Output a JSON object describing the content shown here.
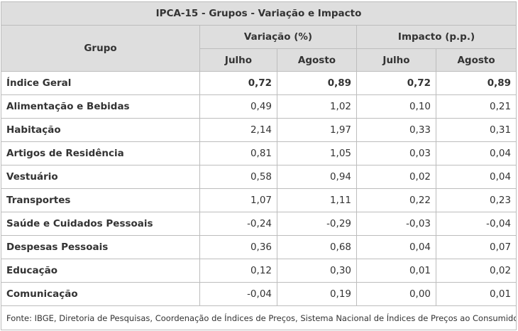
{
  "table": {
    "title": "IPCA-15 - Grupos - Variação e Impacto",
    "group_header": "Grupo",
    "variation_header": "Variação (%)",
    "impact_header": "Impacto (p.p.)",
    "month_labels": [
      "Julho",
      "Agosto",
      "Julho",
      "Agosto"
    ],
    "rows": [
      {
        "name": "Índice Geral",
        "values": [
          "0,72",
          "0,89",
          "0,72",
          "0,89"
        ]
      },
      {
        "name": "Alimentação e Bebidas",
        "values": [
          "0,49",
          "1,02",
          "0,10",
          "0,21"
        ]
      },
      {
        "name": "Habitação",
        "values": [
          "2,14",
          "1,97",
          "0,33",
          "0,31"
        ]
      },
      {
        "name": "Artigos de Residência",
        "values": [
          "0,81",
          "1,05",
          "0,03",
          "0,04"
        ]
      },
      {
        "name": "Vestuário",
        "values": [
          "0,58",
          "0,94",
          "0,02",
          "0,04"
        ]
      },
      {
        "name": "Transportes",
        "values": [
          "1,07",
          "1,11",
          "0,22",
          "0,23"
        ]
      },
      {
        "name": "Saúde e Cuidados Pessoais",
        "values": [
          "-0,24",
          "-0,29",
          "-0,03",
          "-0,04"
        ]
      },
      {
        "name": "Despesas Pessoais",
        "values": [
          "0,36",
          "0,68",
          "0,04",
          "0,07"
        ]
      },
      {
        "name": "Educação",
        "values": [
          "0,12",
          "0,30",
          "0,01",
          "0,02"
        ]
      },
      {
        "name": "Comunicação",
        "values": [
          "-0,04",
          "0,19",
          "0,00",
          "0,01"
        ]
      }
    ],
    "source": "Fonte: IBGE, Diretoria de Pesquisas, Coordenação de Índices de Preços, Sistema Nacional de Índices de Preços ao Consumidor."
  }
}
